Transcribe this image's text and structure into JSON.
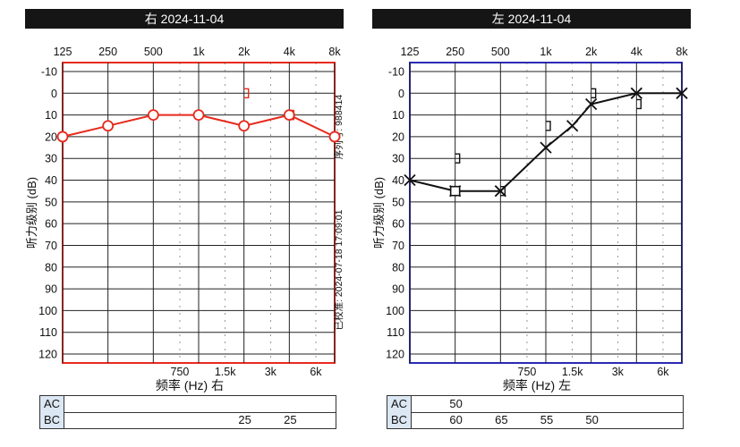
{
  "colors": {
    "right_ear": "#e8291d",
    "left_ear": "#111111",
    "left_frame": "#2a2ab5",
    "title_bg": "#151515",
    "summary_label_bg": "#dbe7f3"
  },
  "chart_data": [
    {
      "type": "line",
      "title": "右 2024-11-04",
      "ear": "right",
      "xlabel": "频率 (Hz) 右",
      "ylabel": "听力级别 (dB)",
      "x_ticks_top": [
        "125",
        "250",
        "500",
        "1k",
        "2k",
        "4k",
        "8k"
      ],
      "x_ticks_bottom": [
        "750",
        "1.5k",
        "3k",
        "6k"
      ],
      "y_ticks": [
        "-10",
        "0",
        "10",
        "20",
        "30",
        "40",
        "50",
        "60",
        "70",
        "80",
        "90",
        "100",
        "110",
        "120"
      ],
      "ylim": [
        -10,
        120
      ],
      "y_inverted": true,
      "grid": true,
      "side_notes": [
        "序列号: 988414",
        "已校准: 2024-07-18 17:09:01"
      ],
      "series": [
        {
          "marker": "circle",
          "x": [
            "125",
            "250",
            "500",
            "1k",
            "2k",
            "4k",
            "8k"
          ],
          "values": [
            20,
            15,
            10,
            10,
            15,
            10,
            20
          ]
        },
        {
          "marker": "bracket",
          "x": [
            "2k",
            "4k"
          ],
          "values": [
            0,
            10
          ]
        }
      ]
    },
    {
      "type": "line",
      "title": "左 2024-11-04",
      "ear": "left",
      "xlabel": "频率 (Hz) 左",
      "ylabel": "听力级别 (dB)",
      "x_ticks_top": [
        "125",
        "250",
        "500",
        "1k",
        "2k",
        "4k",
        "8k"
      ],
      "x_ticks_bottom": [
        "750",
        "1.5k",
        "3k",
        "6k"
      ],
      "y_ticks": [
        "-10",
        "0",
        "10",
        "20",
        "30",
        "40",
        "50",
        "60",
        "70",
        "80",
        "90",
        "100",
        "110",
        "120"
      ],
      "ylim": [
        -10,
        120
      ],
      "y_inverted": true,
      "grid": true,
      "side_notes": [],
      "series": [
        {
          "marker": "cross",
          "x": [
            "125",
            "250",
            "500",
            "1k",
            "1.5k",
            "2k",
            "4k",
            "8k"
          ],
          "values": [
            40,
            45,
            45,
            25,
            15,
            5,
            0,
            0
          ]
        },
        {
          "marker": "square",
          "x": [
            "250"
          ],
          "values": [
            45
          ]
        },
        {
          "marker": "bracket",
          "x": [
            "250",
            "500",
            "1k",
            "2k",
            "4k"
          ],
          "values": [
            30,
            45,
            15,
            0,
            5
          ]
        }
      ]
    }
  ],
  "summaries": [
    {
      "ac_label": "AC",
      "bc_label": "BC",
      "ac": [],
      "bc": [
        {
          "x": "2k",
          "text": "25"
        },
        {
          "x": "4k",
          "text": "25"
        }
      ]
    },
    {
      "ac_label": "AC",
      "bc_label": "BC",
      "ac": [
        {
          "x": "250",
          "text": "50"
        }
      ],
      "bc": [
        {
          "x": "250",
          "text": "60"
        },
        {
          "x": "500",
          "text": "65"
        },
        {
          "x": "1k",
          "text": "55"
        },
        {
          "x": "2k",
          "text": "50"
        }
      ]
    }
  ]
}
